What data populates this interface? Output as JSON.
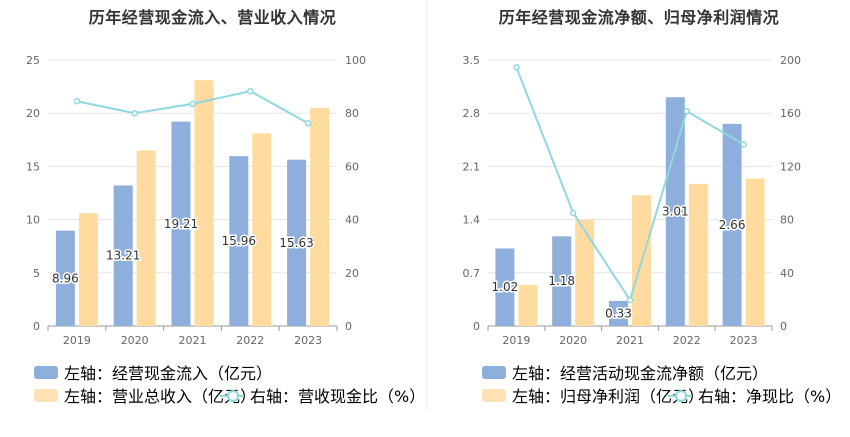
{
  "chart_data": [
    {
      "type": "bar+line",
      "title": "历年经营现金流入、营业收入情况",
      "categories": [
        "2019",
        "2020",
        "2021",
        "2022",
        "2023"
      ],
      "left_axis": {
        "ylim": [
          0,
          25
        ],
        "ticks": [
          "0",
          "5",
          "10",
          "15",
          "20",
          "25"
        ]
      },
      "right_axis": {
        "ylim": [
          0,
          100
        ],
        "ticks": [
          "0",
          "20",
          "40",
          "60",
          "80",
          "100"
        ]
      },
      "bar_series": [
        {
          "name": "左轴：经营现金流入（亿元）",
          "color": "#8eaedc",
          "axis": "left",
          "values": [
            8.96,
            13.21,
            19.21,
            15.96,
            15.63
          ],
          "labels": [
            "8.96",
            "13.21",
            "19.21",
            "15.96",
            "15.63"
          ]
        },
        {
          "name": "左轴：营业总收入（亿元）",
          "color": "#ffdba0",
          "axis": "left",
          "values": [
            10.6,
            16.5,
            23.1,
            18.1,
            20.5
          ]
        }
      ],
      "line_series": {
        "name": "右轴：营收现金比（%）",
        "color": "#8fd8e0",
        "axis": "right",
        "values": [
          84.5,
          80.0,
          83.5,
          88.3,
          76.2
        ]
      },
      "grid": true,
      "legend_position": "bottom-left"
    },
    {
      "type": "bar+line",
      "title": "历年经营现金流净额、归母净利润情况",
      "categories": [
        "2019",
        "2020",
        "2021",
        "2022",
        "2023"
      ],
      "left_axis": {
        "ylim": [
          0,
          3.5
        ],
        "ticks": [
          "0",
          "0.7",
          "1.4",
          "2.1",
          "2.8",
          "3.5"
        ]
      },
      "right_axis": {
        "ylim": [
          0,
          200
        ],
        "ticks": [
          "0",
          "40",
          "80",
          "120",
          "160",
          "200"
        ]
      },
      "bar_series": [
        {
          "name": "左轴：经营活动现金流净额（亿元）",
          "color": "#8eaedc",
          "axis": "left",
          "values": [
            1.02,
            1.18,
            0.33,
            3.01,
            2.66
          ],
          "labels": [
            "1.02",
            "1.18",
            "0.33",
            "3.01",
            "2.66"
          ]
        },
        {
          "name": "左轴：归母净利润（亿元）",
          "color": "#ffdba0",
          "axis": "left",
          "values": [
            0.54,
            1.4,
            1.72,
            1.87,
            1.94
          ]
        }
      ],
      "line_series": {
        "name": "右轴：净现比（%）",
        "color": "#8fd8e0",
        "axis": "right",
        "values": [
          194.5,
          85.0,
          19.5,
          161.5,
          136.5
        ]
      },
      "grid": true,
      "legend_position": "bottom-left"
    }
  ]
}
